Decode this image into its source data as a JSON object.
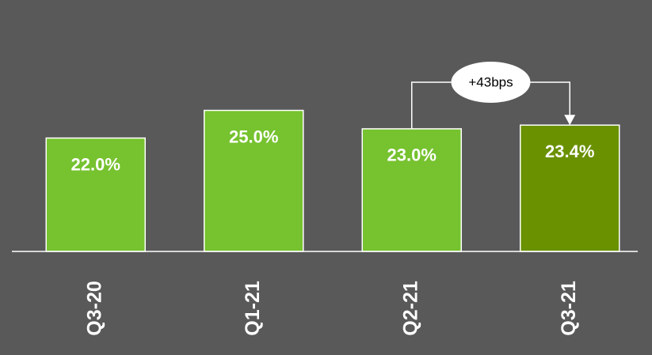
{
  "chart_data": {
    "type": "bar",
    "categories": [
      "Q3-20",
      "Q1-21",
      "Q2-21",
      "Q3-21"
    ],
    "values": [
      22.0,
      25.0,
      23.0,
      23.4
    ],
    "value_labels": [
      "22.0%",
      "25.0%",
      "23.0%",
      "23.4%"
    ],
    "colors": [
      "#76c22f",
      "#76c22f",
      "#76c22f",
      "#6a9100"
    ],
    "ylim": [
      9.7,
      35
    ],
    "annotation": "+43bps"
  }
}
